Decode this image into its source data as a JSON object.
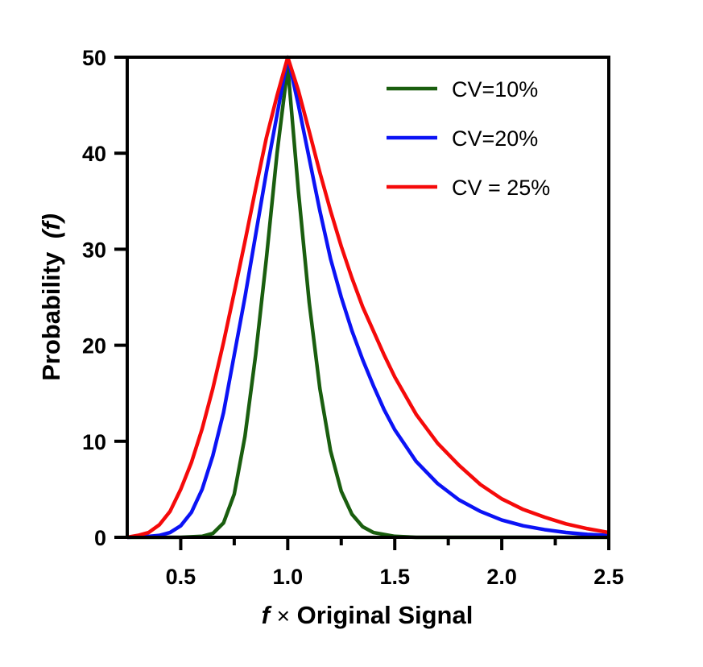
{
  "chart_data": {
    "type": "line",
    "xlabel_var": "f",
    "xlabel_times": "×",
    "xlabel_rest": "Original Signal",
    "ylabel_main": "Probability",
    "ylabel_var": "(f)",
    "xlim": [
      0.25,
      2.5
    ],
    "ylim": [
      0,
      50
    ],
    "x_ticks": [
      "0.5",
      "1.0",
      "1.5",
      "2.0",
      "2.5"
    ],
    "x_tick_values": [
      0.5,
      1.0,
      1.5,
      2.0,
      2.5
    ],
    "x_minor_ticks": [
      0.75,
      1.25,
      1.75,
      2.25
    ],
    "y_ticks": [
      "0",
      "10",
      "20",
      "30",
      "40",
      "50"
    ],
    "y_tick_values": [
      0,
      10,
      20,
      30,
      40,
      50
    ],
    "grid": false,
    "legend_position": "top-right",
    "series": [
      {
        "name": "CV=10%",
        "color": "#1a5e0f",
        "points": [
          [
            0.25,
            0
          ],
          [
            0.5,
            0
          ],
          [
            0.6,
            0.1
          ],
          [
            0.65,
            0.4
          ],
          [
            0.7,
            1.5
          ],
          [
            0.75,
            4.5
          ],
          [
            0.8,
            10.5
          ],
          [
            0.85,
            19
          ],
          [
            0.9,
            29
          ],
          [
            0.95,
            40
          ],
          [
            1.0,
            49
          ],
          [
            1.05,
            36
          ],
          [
            1.1,
            24.5
          ],
          [
            1.15,
            15.5
          ],
          [
            1.2,
            9
          ],
          [
            1.25,
            4.8
          ],
          [
            1.3,
            2.4
          ],
          [
            1.35,
            1.1
          ],
          [
            1.4,
            0.5
          ],
          [
            1.5,
            0.1
          ],
          [
            1.6,
            0
          ],
          [
            2.5,
            0
          ]
        ]
      },
      {
        "name": "CV=20%",
        "color": "#0b13f5",
        "points": [
          [
            0.25,
            0
          ],
          [
            0.35,
            0.1
          ],
          [
            0.4,
            0.2
          ],
          [
            0.45,
            0.5
          ],
          [
            0.5,
            1.2
          ],
          [
            0.55,
            2.6
          ],
          [
            0.6,
            5
          ],
          [
            0.65,
            8.5
          ],
          [
            0.7,
            13
          ],
          [
            0.75,
            19
          ],
          [
            0.8,
            25
          ],
          [
            0.85,
            31.5
          ],
          [
            0.9,
            38
          ],
          [
            0.95,
            44
          ],
          [
            1.0,
            50
          ],
          [
            1.05,
            45
          ],
          [
            1.1,
            39.5
          ],
          [
            1.15,
            34
          ],
          [
            1.2,
            29
          ],
          [
            1.25,
            25
          ],
          [
            1.3,
            21.5
          ],
          [
            1.35,
            18.5
          ],
          [
            1.4,
            15.8
          ],
          [
            1.45,
            13.3
          ],
          [
            1.5,
            11.2
          ],
          [
            1.6,
            7.9
          ],
          [
            1.7,
            5.6
          ],
          [
            1.8,
            3.9
          ],
          [
            1.9,
            2.7
          ],
          [
            2.0,
            1.8
          ],
          [
            2.1,
            1.2
          ],
          [
            2.2,
            0.8
          ],
          [
            2.3,
            0.5
          ],
          [
            2.4,
            0.3
          ],
          [
            2.5,
            0.2
          ]
        ]
      },
      {
        "name": "CV = 25%",
        "color": "#f50a0a",
        "points": [
          [
            0.25,
            0
          ],
          [
            0.3,
            0.2
          ],
          [
            0.35,
            0.5
          ],
          [
            0.4,
            1.3
          ],
          [
            0.45,
            2.7
          ],
          [
            0.5,
            5
          ],
          [
            0.55,
            7.8
          ],
          [
            0.6,
            11.3
          ],
          [
            0.65,
            15.5
          ],
          [
            0.7,
            20.3
          ],
          [
            0.75,
            25.5
          ],
          [
            0.8,
            30.8
          ],
          [
            0.85,
            36.3
          ],
          [
            0.9,
            41.6
          ],
          [
            0.95,
            46
          ],
          [
            1.0,
            50
          ],
          [
            1.05,
            46.5
          ],
          [
            1.1,
            42.3
          ],
          [
            1.15,
            38
          ],
          [
            1.2,
            34
          ],
          [
            1.25,
            30.3
          ],
          [
            1.3,
            27
          ],
          [
            1.35,
            24
          ],
          [
            1.4,
            21.5
          ],
          [
            1.45,
            19
          ],
          [
            1.5,
            16.7
          ],
          [
            1.6,
            12.8
          ],
          [
            1.7,
            9.8
          ],
          [
            1.8,
            7.5
          ],
          [
            1.9,
            5.5
          ],
          [
            2.0,
            4
          ],
          [
            2.1,
            2.9
          ],
          [
            2.2,
            2.1
          ],
          [
            2.3,
            1.4
          ],
          [
            2.4,
            0.9
          ],
          [
            2.5,
            0.5
          ]
        ]
      }
    ]
  }
}
